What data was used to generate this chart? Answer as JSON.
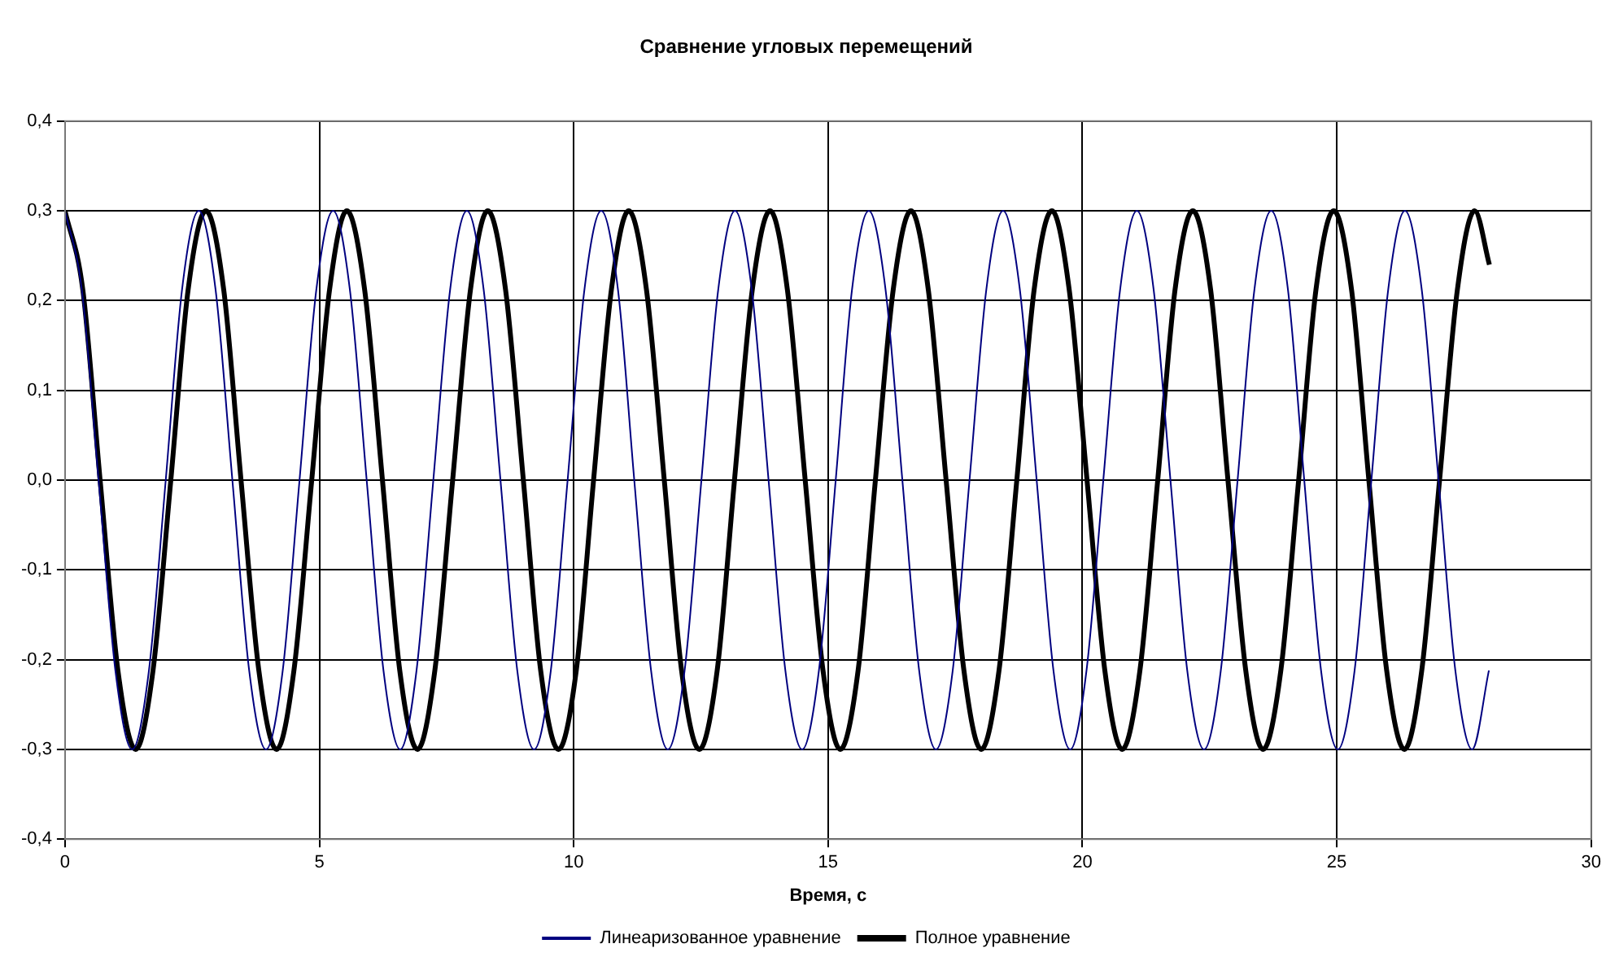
{
  "chart_data": {
    "type": "line",
    "title": "Сравнение угловых перемещений",
    "xlabel": "Время, с",
    "xlim": [
      0,
      30
    ],
    "xticks": [
      0,
      5,
      10,
      15,
      20,
      25,
      30
    ],
    "ylim": [
      -0.4,
      0.4
    ],
    "yticks": [
      {
        "value": -0.4,
        "label": "-0,4"
      },
      {
        "value": -0.3,
        "label": "-0,3"
      },
      {
        "value": -0.2,
        "label": "-0,2"
      },
      {
        "value": -0.1,
        "label": "-0,1"
      },
      {
        "value": 0,
        "label": "0,0"
      },
      {
        "value": 0.1,
        "label": "0,1"
      },
      {
        "value": 0.2,
        "label": "0,2"
      },
      {
        "value": 0.3,
        "label": "0,3"
      },
      {
        "value": 0.4,
        "label": "0,4"
      }
    ],
    "grid": true,
    "legend": "bottom",
    "marker": "none",
    "line_style": "solid",
    "series": [
      {
        "name": "Линеаризованное уравнение",
        "color": "#000080",
        "x": [
          0,
          0.33,
          0.66,
          0.99,
          1.32,
          1.65,
          1.98,
          2.3,
          2.63,
          2.96,
          3.29,
          3.62,
          3.95,
          4.28,
          4.61,
          4.94,
          5.27,
          5.6,
          5.93,
          6.26,
          6.59,
          6.91,
          7.24,
          7.57,
          7.9,
          8.23,
          8.56,
          8.89,
          9.22,
          9.55,
          9.88,
          10.21,
          10.54,
          10.87,
          11.19,
          11.52,
          11.85,
          12.18,
          12.51,
          12.84,
          13.17,
          13.5,
          13.83,
          14.16,
          14.49,
          14.82,
          15.15,
          15.47,
          15.8,
          16.13,
          16.46,
          16.79,
          17.12,
          17.45,
          17.78,
          18.11,
          18.44,
          18.77,
          19.1,
          19.43,
          19.76,
          20.08,
          20.41,
          20.74,
          21.07,
          21.4,
          21.73,
          22.06,
          22.39,
          22.72,
          23.05,
          23.38,
          23.71,
          24.04,
          24.36,
          24.69,
          25.02,
          25.35,
          25.68,
          26.01,
          26.34,
          26.67,
          27.0,
          27.33,
          27.66,
          27.99
        ],
        "values": [
          0.3,
          0.212,
          0,
          -0.212,
          -0.3,
          -0.212,
          0,
          0.212,
          0.3,
          0.212,
          0,
          -0.212,
          -0.3,
          -0.212,
          0,
          0.212,
          0.3,
          0.212,
          0,
          -0.212,
          -0.3,
          -0.212,
          0,
          0.212,
          0.3,
          0.212,
          0,
          -0.212,
          -0.3,
          -0.212,
          0,
          0.212,
          0.3,
          0.212,
          0,
          -0.212,
          -0.3,
          -0.212,
          0,
          0.212,
          0.3,
          0.212,
          0,
          -0.212,
          -0.3,
          -0.212,
          0,
          0.212,
          0.3,
          0.212,
          0,
          -0.212,
          -0.3,
          -0.212,
          0,
          0.212,
          0.3,
          0.212,
          0,
          -0.212,
          -0.3,
          -0.212,
          0,
          0.212,
          0.3,
          0.212,
          0,
          -0.212,
          -0.3,
          -0.212,
          0,
          0.212,
          0.3,
          0.212,
          0,
          -0.212,
          -0.3,
          -0.212,
          0,
          0.212,
          0.3,
          0.212,
          0,
          -0.212,
          -0.3,
          -0.212
        ]
      },
      {
        "name": "Полное уравнение",
        "color": "#000000",
        "x": [
          0,
          0.35,
          0.69,
          1.04,
          1.39,
          1.73,
          2.08,
          2.42,
          2.77,
          3.12,
          3.46,
          3.81,
          4.16,
          4.5,
          4.85,
          5.2,
          5.54,
          5.89,
          6.24,
          6.58,
          6.93,
          7.27,
          7.62,
          7.97,
          8.31,
          8.66,
          9.01,
          9.35,
          9.7,
          10.05,
          10.39,
          10.74,
          11.08,
          11.43,
          11.78,
          12.12,
          12.47,
          12.82,
          13.16,
          13.51,
          13.86,
          14.2,
          14.55,
          14.9,
          15.24,
          15.59,
          15.93,
          16.28,
          16.63,
          16.97,
          17.32,
          17.67,
          18.01,
          18.36,
          18.71,
          19.05,
          19.4,
          19.74,
          20.09,
          20.44,
          20.78,
          21.13,
          21.48,
          21.82,
          22.17,
          22.52,
          22.86,
          23.21,
          23.55,
          23.9,
          24.25,
          24.59,
          24.94,
          25.29,
          25.63,
          25.98,
          26.33,
          26.67,
          27.02,
          27.37,
          27.71,
          28
        ],
        "values": [
          0.3,
          0.212,
          0,
          -0.212,
          -0.3,
          -0.212,
          0,
          0.212,
          0.3,
          0.212,
          0,
          -0.212,
          -0.3,
          -0.212,
          0,
          0.212,
          0.3,
          0.212,
          0,
          -0.212,
          -0.3,
          -0.212,
          0,
          0.212,
          0.3,
          0.212,
          0,
          -0.212,
          -0.3,
          -0.212,
          0,
          0.212,
          0.3,
          0.212,
          0,
          -0.212,
          -0.3,
          -0.212,
          0,
          0.212,
          0.3,
          0.212,
          0,
          -0.212,
          -0.3,
          -0.212,
          0,
          0.212,
          0.3,
          0.212,
          0,
          -0.212,
          -0.3,
          -0.212,
          0,
          0.212,
          0.3,
          0.212,
          0,
          -0.212,
          -0.3,
          -0.212,
          0,
          0.212,
          0.3,
          0.212,
          0,
          -0.212,
          -0.3,
          -0.212,
          0,
          0.212,
          0.3,
          0.212,
          0,
          -0.212,
          -0.3,
          -0.212,
          0,
          0.212,
          0.3,
          0.24
        ]
      }
    ]
  }
}
